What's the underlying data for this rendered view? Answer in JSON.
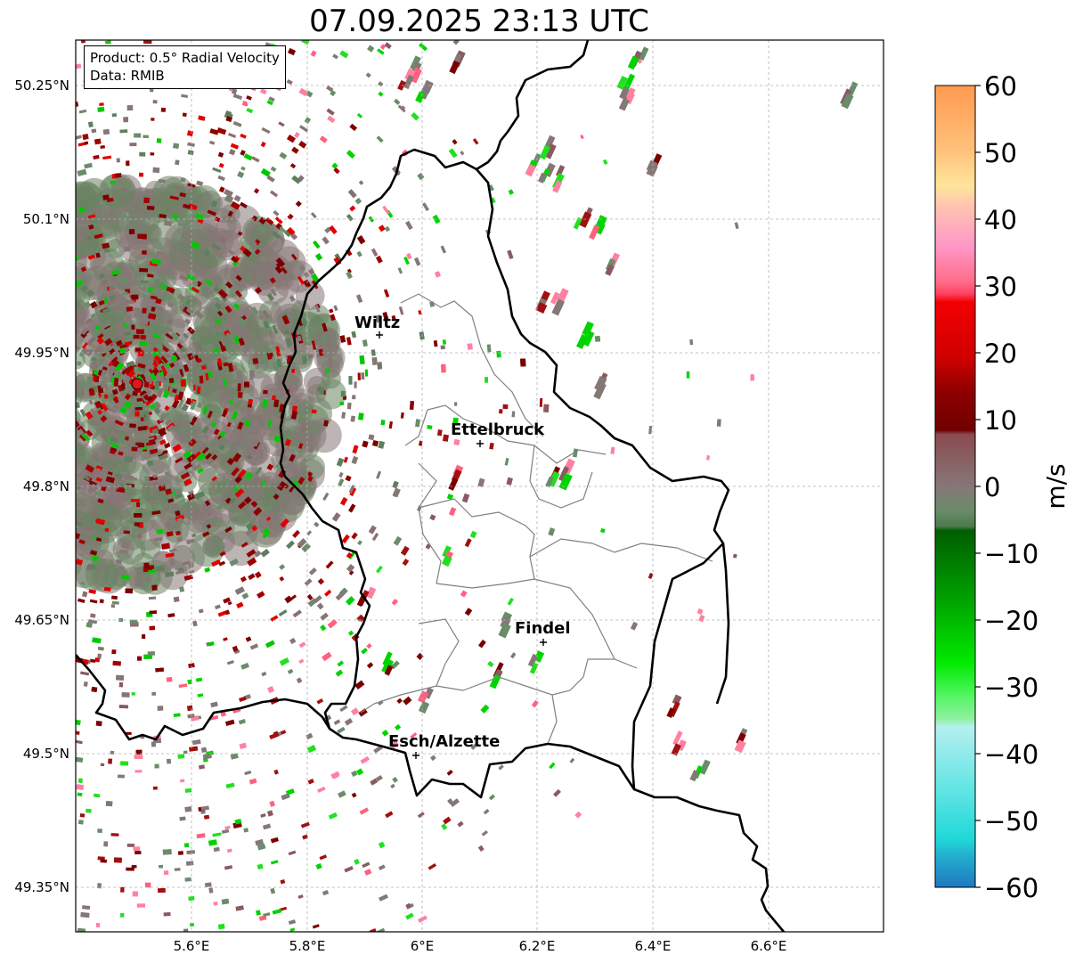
{
  "title": "07.09.2025 23:13 UTC",
  "info": {
    "product": "Product: 0.5° Radial Velocity",
    "data_source": "Data: RMIB"
  },
  "lat_labels": [
    "50.25°N",
    "50.1°N",
    "49.95°N",
    "49.8°N",
    "49.65°N",
    "49.5°N",
    "49.35°N"
  ],
  "lon_labels": [
    "5.6°E",
    "5.8°E",
    "6°E",
    "6.2°E",
    "6.4°E",
    "6.6°E"
  ],
  "cities": [
    {
      "name": "Wiltz"
    },
    {
      "name": "Ettelbruck"
    },
    {
      "name": "Findel"
    },
    {
      "name": "Esch/Alzette"
    }
  ],
  "colorbar": {
    "unit": "m/s",
    "tick_labels": [
      "60",
      "50",
      "40",
      "30",
      "20",
      "10",
      "0",
      "−10",
      "−20",
      "−30",
      "−40",
      "−50",
      "−60"
    ],
    "range": [
      -60,
      60
    ]
  },
  "colors": {
    "grid": "#b0b0b0",
    "border_country": "#000000",
    "border_canton": "#808080",
    "radar_site": "#e8141c"
  }
}
